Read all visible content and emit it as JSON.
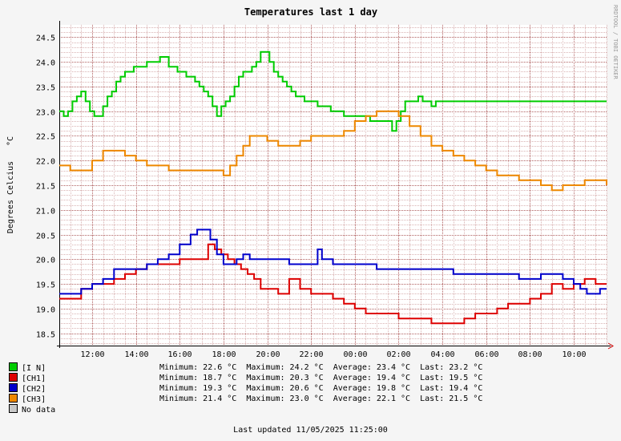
{
  "chart_data": {
    "type": "line",
    "title": "Temperatures last 1 day",
    "ylabel": "Degrees Celcius",
    "yunit": "°C",
    "watermark": "RRDTOOL / TOBI OETIKER",
    "ylim": [
      18.25,
      24.75
    ],
    "xlim": [
      10.5,
      35.5
    ],
    "y_ticks": [
      "18.5",
      "19.0",
      "19.5",
      "20.0",
      "20.5",
      "21.0",
      "21.5",
      "22.0",
      "22.5",
      "23.0",
      "23.5",
      "24.0",
      "24.5"
    ],
    "x_tick_labels": [
      "12:00",
      "14:00",
      "16:00",
      "18:00",
      "20:00",
      "22:00",
      "00:00",
      "02:00",
      "04:00",
      "06:00",
      "08:00",
      "10:00"
    ],
    "grid": true,
    "series": [
      {
        "name": "[I N]",
        "color": "#00cc00",
        "x": [
          10.5,
          10.7,
          10.9,
          11.1,
          11.3,
          11.5,
          11.7,
          11.9,
          12.1,
          12.3,
          12.5,
          12.7,
          12.9,
          13.1,
          13.3,
          13.5,
          13.7,
          13.9,
          14.1,
          14.3,
          14.5,
          14.7,
          14.9,
          15.1,
          15.3,
          15.5,
          15.7,
          15.9,
          16.1,
          16.3,
          16.5,
          16.7,
          16.9,
          17.1,
          17.3,
          17.5,
          17.7,
          17.9,
          18.1,
          18.3,
          18.5,
          18.7,
          18.9,
          19.1,
          19.3,
          19.5,
          19.7,
          19.9,
          20.1,
          20.3,
          20.5,
          20.7,
          20.9,
          21.1,
          21.3,
          21.5,
          21.7,
          21.9,
          22.1,
          22.3,
          22.5,
          22.7,
          22.9,
          23.1,
          23.3,
          23.5,
          23.7,
          23.9,
          24.1,
          24.3,
          24.5,
          24.7,
          24.9,
          25.1,
          25.3,
          25.5,
          25.7,
          25.9,
          26.1,
          26.3,
          26.5,
          26.7,
          26.9,
          27.1,
          27.3,
          27.5,
          27.7,
          27.9,
          28.1,
          28.3,
          28.5,
          28.7,
          28.9,
          29.1,
          29.3,
          29.5,
          29.7,
          29.9,
          30.1,
          30.3,
          30.5,
          30.7,
          30.9,
          31.1,
          31.3,
          31.5,
          31.7,
          31.9,
          32.1,
          32.3,
          32.5,
          32.7,
          32.9,
          33.1,
          33.3,
          33.5,
          33.7,
          33.9,
          34.1,
          34.3,
          34.5,
          34.7,
          34.9,
          35.1,
          35.3,
          35.5
        ],
        "y": [
          23.0,
          22.9,
          23.0,
          23.2,
          23.3,
          23.4,
          23.2,
          23.0,
          22.9,
          22.9,
          23.1,
          23.3,
          23.4,
          23.6,
          23.7,
          23.8,
          23.8,
          23.9,
          23.9,
          23.9,
          24.0,
          24.0,
          24.0,
          24.1,
          24.1,
          23.9,
          23.9,
          23.8,
          23.8,
          23.7,
          23.7,
          23.6,
          23.5,
          23.4,
          23.3,
          23.1,
          22.9,
          23.1,
          23.2,
          23.3,
          23.5,
          23.7,
          23.8,
          23.8,
          23.9,
          24.0,
          24.2,
          24.2,
          24.0,
          23.8,
          23.7,
          23.6,
          23.5,
          23.4,
          23.3,
          23.3,
          23.2,
          23.2,
          23.2,
          23.1,
          23.1,
          23.1,
          23.0,
          23.0,
          23.0,
          22.9,
          22.9,
          22.9,
          22.9,
          22.9,
          22.9,
          22.8,
          22.8,
          22.8,
          22.8,
          22.8,
          22.6,
          22.8,
          23.0,
          23.2,
          23.2,
          23.2,
          23.3,
          23.2,
          23.2,
          23.1,
          23.2,
          23.2,
          23.2,
          23.2,
          23.2,
          23.2,
          23.2,
          23.2,
          23.2,
          23.2,
          23.2,
          23.2,
          23.2,
          23.2,
          23.2,
          23.2,
          23.2,
          23.2,
          23.2,
          23.2,
          23.2,
          23.2,
          23.2,
          23.2,
          23.2,
          23.2,
          23.2,
          23.2,
          23.2,
          23.2,
          23.2,
          23.2,
          23.2,
          23.2,
          23.2,
          23.2,
          23.2,
          23.2,
          23.2,
          23.2
        ]
      },
      {
        "name": "[CH1]",
        "color": "#dd0000",
        "x": [
          10.5,
          11.0,
          11.5,
          12.0,
          12.5,
          13.0,
          13.5,
          14.0,
          14.5,
          15.0,
          15.5,
          16.0,
          16.5,
          17.0,
          17.3,
          17.6,
          17.9,
          18.2,
          18.5,
          18.8,
          19.1,
          19.4,
          19.7,
          20.0,
          20.5,
          21.0,
          21.5,
          22.0,
          22.5,
          23.0,
          23.5,
          24.0,
          24.5,
          25.0,
          25.5,
          26.0,
          26.5,
          27.0,
          27.5,
          28.0,
          28.5,
          29.0,
          29.5,
          30.0,
          30.5,
          31.0,
          31.5,
          32.0,
          32.5,
          33.0,
          33.5,
          34.0,
          34.5,
          35.0,
          35.5
        ],
        "y": [
          19.2,
          19.2,
          19.4,
          19.5,
          19.5,
          19.6,
          19.7,
          19.8,
          19.9,
          19.9,
          19.9,
          20.0,
          20.0,
          20.0,
          20.3,
          20.2,
          20.1,
          20.0,
          19.9,
          19.8,
          19.7,
          19.6,
          19.4,
          19.4,
          19.3,
          19.6,
          19.4,
          19.3,
          19.3,
          19.2,
          19.1,
          19.0,
          18.9,
          18.9,
          18.9,
          18.8,
          18.8,
          18.8,
          18.7,
          18.7,
          18.7,
          18.8,
          18.9,
          18.9,
          19.0,
          19.1,
          19.1,
          19.2,
          19.3,
          19.5,
          19.4,
          19.5,
          19.6,
          19.5,
          19.5
        ]
      },
      {
        "name": "[CH2]",
        "color": "#0000cc",
        "x": [
          10.5,
          11.0,
          11.5,
          12.0,
          12.5,
          13.0,
          13.5,
          14.0,
          14.5,
          15.0,
          15.5,
          16.0,
          16.5,
          16.8,
          17.1,
          17.4,
          17.7,
          18.0,
          18.3,
          18.6,
          18.9,
          19.2,
          19.5,
          20.0,
          20.5,
          21.0,
          21.5,
          22.0,
          22.3,
          22.5,
          23.0,
          23.5,
          24.0,
          24.5,
          25.0,
          25.5,
          26.0,
          26.5,
          27.0,
          27.5,
          28.0,
          28.5,
          29.0,
          29.5,
          30.0,
          30.5,
          31.0,
          31.5,
          32.0,
          32.5,
          33.0,
          33.5,
          34.0,
          34.3,
          34.6,
          34.9,
          35.2,
          35.5
        ],
        "y": [
          19.3,
          19.3,
          19.4,
          19.5,
          19.6,
          19.8,
          19.8,
          19.8,
          19.9,
          20.0,
          20.1,
          20.3,
          20.5,
          20.6,
          20.6,
          20.4,
          20.1,
          19.9,
          19.9,
          20.0,
          20.1,
          20.0,
          20.0,
          20.0,
          20.0,
          19.9,
          19.9,
          19.9,
          20.2,
          20.0,
          19.9,
          19.9,
          19.9,
          19.9,
          19.8,
          19.8,
          19.8,
          19.8,
          19.8,
          19.8,
          19.8,
          19.7,
          19.7,
          19.7,
          19.7,
          19.7,
          19.7,
          19.6,
          19.6,
          19.7,
          19.7,
          19.6,
          19.5,
          19.4,
          19.3,
          19.3,
          19.4,
          19.4
        ]
      },
      {
        "name": "[CH3]",
        "color": "#ee8800",
        "x": [
          10.5,
          11.0,
          11.5,
          12.0,
          12.5,
          13.0,
          13.5,
          14.0,
          14.5,
          15.0,
          15.5,
          16.0,
          16.5,
          17.0,
          17.5,
          18.0,
          18.3,
          18.6,
          18.9,
          19.2,
          19.5,
          20.0,
          20.5,
          21.0,
          21.5,
          22.0,
          22.5,
          23.0,
          23.5,
          24.0,
          24.5,
          25.0,
          25.5,
          26.0,
          26.5,
          27.0,
          27.5,
          28.0,
          28.5,
          29.0,
          29.5,
          30.0,
          30.5,
          31.0,
          31.5,
          32.0,
          32.5,
          33.0,
          33.5,
          34.0,
          34.5,
          35.0,
          35.5
        ],
        "y": [
          21.9,
          21.8,
          21.8,
          22.0,
          22.2,
          22.2,
          22.1,
          22.0,
          21.9,
          21.9,
          21.8,
          21.8,
          21.8,
          21.8,
          21.8,
          21.7,
          21.9,
          22.1,
          22.3,
          22.5,
          22.5,
          22.4,
          22.3,
          22.3,
          22.4,
          22.5,
          22.5,
          22.5,
          22.6,
          22.8,
          22.9,
          23.0,
          23.0,
          22.9,
          22.7,
          22.5,
          22.3,
          22.2,
          22.1,
          22.0,
          21.9,
          21.8,
          21.7,
          21.7,
          21.6,
          21.6,
          21.5,
          21.4,
          21.5,
          21.5,
          21.6,
          21.6,
          21.5
        ]
      }
    ]
  },
  "legend": [
    {
      "label": "[I N]",
      "color": "#00cc00"
    },
    {
      "label": "[CH1]",
      "color": "#dd0000"
    },
    {
      "label": "[CH2]",
      "color": "#0000cc"
    },
    {
      "label": "[CH3]",
      "color": "#ee8800"
    },
    {
      "label": "No data",
      "color": "#c8c8c8"
    }
  ],
  "stats": [
    "Minimum: 22.6 °C  Maximum: 24.2 °C  Average: 23.4 °C  Last: 23.2 °C",
    "Minimum: 18.7 °C  Maximum: 20.3 °C  Average: 19.4 °C  Last: 19.5 °C",
    "Minimum: 19.3 °C  Maximum: 20.6 °C  Average: 19.8 °C  Last: 19.4 °C",
    "Minimum: 21.4 °C  Maximum: 23.0 °C  Average: 22.1 °C  Last: 21.5 °C"
  ],
  "footer": "Last updated 11/05/2025 11:25:00"
}
